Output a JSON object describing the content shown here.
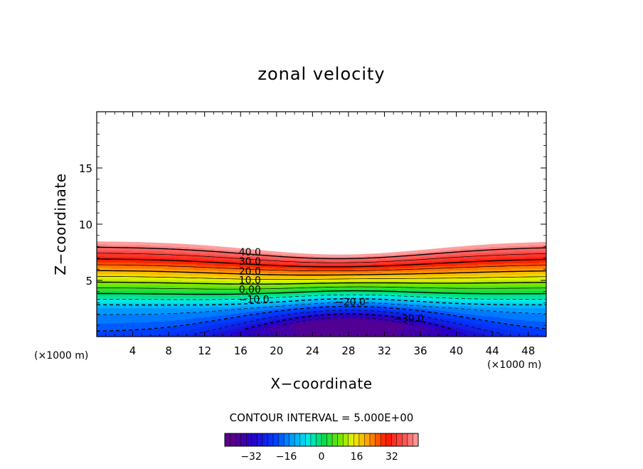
{
  "chart_data": {
    "type": "contour",
    "title": "zonal velocity",
    "xlabel": "X−coordinate",
    "ylabel": "Z−coordinate",
    "x_unit": "(×1000 m)",
    "y_unit": "(×1000 m)",
    "xlim": [
      0,
      50
    ],
    "ylim": [
      0,
      20
    ],
    "x_ticks": [
      4,
      8,
      12,
      16,
      20,
      24,
      28,
      32,
      36,
      40,
      44,
      48
    ],
    "y_ticks": [
      5,
      10,
      15
    ],
    "contour_interval_label": "CONTOUR INTERVAL = 5.000E+00",
    "contour_interval": 5,
    "value_range": [
      -40,
      45
    ],
    "contour_labels": [
      {
        "text": "40.0",
        "x": 15.8,
        "z": 7.2
      },
      {
        "text": "30.0",
        "x": 15.8,
        "z": 6.4
      },
      {
        "text": "20.0",
        "x": 15.8,
        "z": 5.5
      },
      {
        "text": "10.0",
        "x": 15.8,
        "z": 4.7
      },
      {
        "text": "0.00",
        "x": 15.8,
        "z": 3.9
      },
      {
        "text": "−10.0",
        "x": 15.8,
        "z": 3.0
      },
      {
        "text": "−20.0",
        "x": 26.5,
        "z": 2.8
      },
      {
        "text": "−30.0",
        "x": 33.0,
        "z": 1.3
      }
    ],
    "colorbar": {
      "min": -44,
      "max": 44,
      "tick_values": [
        -32,
        -16,
        0,
        16,
        32
      ],
      "tick_labels": [
        "−32",
        "−16",
        "0",
        "16",
        "32"
      ]
    }
  }
}
